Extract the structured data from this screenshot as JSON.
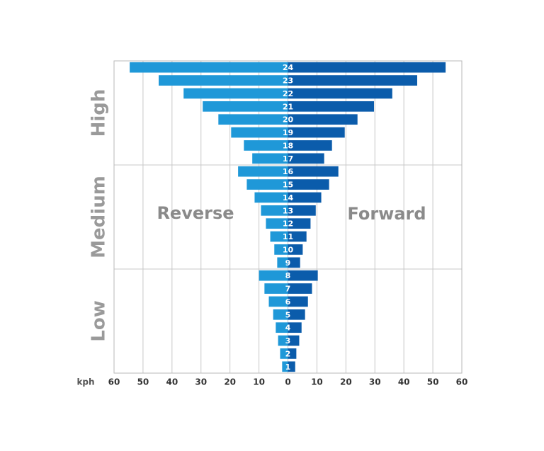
{
  "chart_data": {
    "type": "butterfly",
    "x_label": "kph",
    "categories": [
      "1",
      "2",
      "3",
      "4",
      "5",
      "6",
      "7",
      "8",
      "9",
      "10",
      "11",
      "12",
      "13",
      "14",
      "15",
      "16",
      "17",
      "18",
      "19",
      "20",
      "21",
      "22",
      "23",
      "24"
    ],
    "series": [
      {
        "name": "Reverse",
        "color": "#1f98d8",
        "values": [
          -2,
          -2.7,
          -3.4,
          -4.2,
          -5.1,
          -6.6,
          -8.1,
          -10,
          -3.7,
          -4.7,
          -6.1,
          -7.6,
          -9.3,
          -11.5,
          -14.2,
          -17.2,
          -12.3,
          -15.2,
          -19.6,
          -24,
          -29.4,
          -36,
          -44.6,
          -54.6
        ]
      },
      {
        "name": "Forward",
        "color": "#0b5cab",
        "values": [
          2.5,
          2.9,
          3.9,
          4.7,
          5.9,
          6.9,
          8.3,
          10.3,
          4.2,
          5.1,
          6.4,
          7.8,
          9.6,
          11.5,
          14.2,
          17.4,
          12.5,
          15.2,
          19.6,
          24,
          29.7,
          36,
          44.6,
          54.4
        ]
      }
    ],
    "groups": [
      {
        "label": "Low",
        "from": 1,
        "to": 8
      },
      {
        "label": "Medium",
        "from": 9,
        "to": 16
      },
      {
        "label": "High",
        "from": 17,
        "to": 24
      }
    ],
    "xlim": [
      -60,
      60
    ],
    "xticks": [
      {
        "value": -60,
        "label": "60"
      },
      {
        "value": -50,
        "label": "50"
      },
      {
        "value": -40,
        "label": "40"
      },
      {
        "value": -30,
        "label": "30"
      },
      {
        "value": -20,
        "label": "20"
      },
      {
        "value": -10,
        "label": "10"
      },
      0,
      10,
      20,
      30,
      40,
      50,
      60
    ],
    "grid": true
  }
}
